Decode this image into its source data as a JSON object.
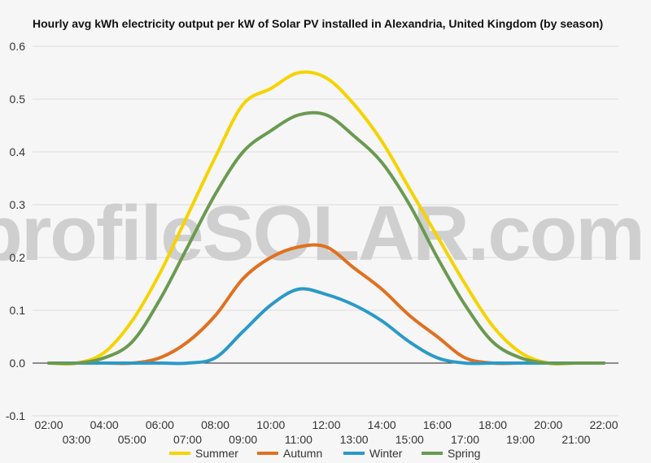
{
  "chart_data": {
    "type": "line",
    "title": "Hourly avg kWh electricity output per kW of Solar PV installed in Alexandria, United Kingdom (by season)",
    "watermark": "profileSOLAR.com",
    "x": [
      "02:00",
      "03:00",
      "04:00",
      "05:00",
      "06:00",
      "07:00",
      "08:00",
      "09:00",
      "10:00",
      "11:00",
      "12:00",
      "13:00",
      "14:00",
      "15:00",
      "16:00",
      "17:00",
      "18:00",
      "19:00",
      "20:00",
      "21:00",
      "22:00"
    ],
    "ylim": [
      -0.1,
      0.6
    ],
    "yticks": [
      "0.6",
      "0.5",
      "0.4",
      "0.3",
      "0.2",
      "0.1",
      "0.0",
      "-0.1"
    ],
    "grid": true,
    "legend_position": "bottom",
    "series": [
      {
        "name": "Summer",
        "color": "#f5d300",
        "values": [
          0.0,
          0.0,
          0.02,
          0.08,
          0.17,
          0.28,
          0.39,
          0.49,
          0.52,
          0.55,
          0.54,
          0.49,
          0.42,
          0.33,
          0.24,
          0.15,
          0.07,
          0.02,
          0.0,
          0.0,
          0.0
        ]
      },
      {
        "name": "Autumn",
        "color": "#e07020",
        "values": [
          0.0,
          0.0,
          0.0,
          0.0,
          0.01,
          0.04,
          0.09,
          0.16,
          0.2,
          0.22,
          0.22,
          0.18,
          0.14,
          0.09,
          0.05,
          0.01,
          0.0,
          0.0,
          0.0,
          0.0,
          0.0
        ]
      },
      {
        "name": "Winter",
        "color": "#2a9ac8",
        "values": [
          0.0,
          0.0,
          0.0,
          0.0,
          0.0,
          0.0,
          0.01,
          0.06,
          0.11,
          0.14,
          0.13,
          0.11,
          0.08,
          0.04,
          0.01,
          0.0,
          0.0,
          0.0,
          0.0,
          0.0,
          0.0
        ]
      },
      {
        "name": "Spring",
        "color": "#6a9a50",
        "values": [
          0.0,
          0.0,
          0.01,
          0.04,
          0.12,
          0.22,
          0.32,
          0.4,
          0.44,
          0.47,
          0.47,
          0.43,
          0.38,
          0.3,
          0.2,
          0.11,
          0.04,
          0.01,
          0.0,
          0.0,
          0.0
        ]
      }
    ]
  }
}
